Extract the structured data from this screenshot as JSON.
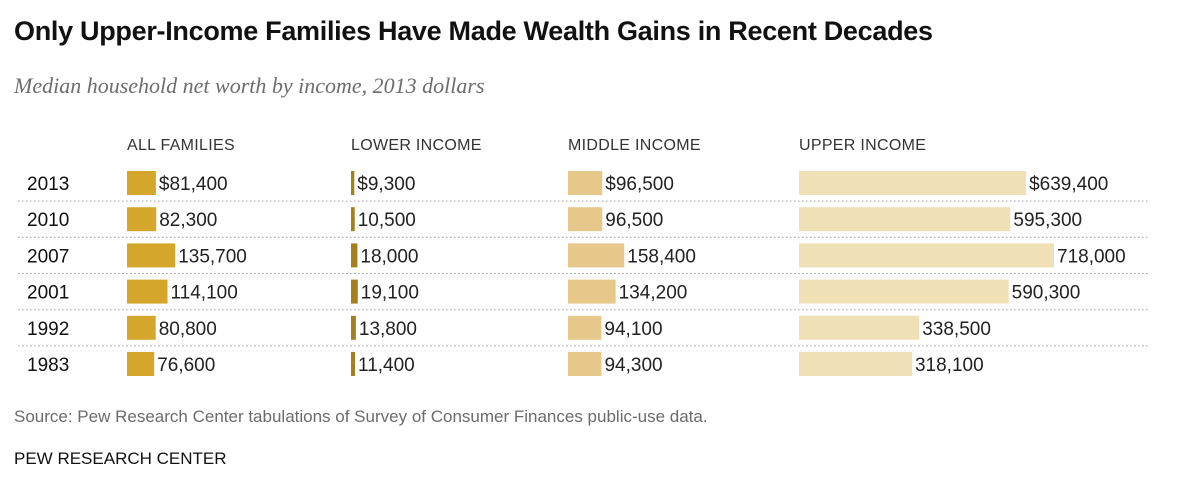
{
  "title": "Only Upper-Income Families Have Made Wealth Gains in Recent Decades",
  "subtitle": "Median household net worth by income, 2013 dollars",
  "source": "Source: Pew Research Center tabulations of Survey of Consumer Finances public-use data.",
  "credit": "PEW RESEARCH CENTER",
  "chart_data": {
    "type": "bar",
    "orientation": "horizontal",
    "categories": [
      "2013",
      "2010",
      "2007",
      "2001",
      "1992",
      "1983"
    ],
    "series": [
      {
        "name": "ALL FAMILIES",
        "color": "#d4a72c",
        "values": [
          81400,
          82300,
          135700,
          114100,
          80800,
          76600
        ],
        "labels": [
          "$81,400",
          "82,300",
          "135,700",
          "114,100",
          "80,800",
          "76,600"
        ]
      },
      {
        "name": "LOWER INCOME",
        "color": "#a47f1c",
        "values": [
          9300,
          10500,
          18000,
          19100,
          13800,
          11400
        ],
        "labels": [
          "$9,300",
          "10,500",
          "18,000",
          "19,100",
          "13,800",
          "11,400"
        ]
      },
      {
        "name": "MIDDLE INCOME",
        "color": "#e6c98a",
        "values": [
          96500,
          96500,
          158400,
          134200,
          94100,
          94300
        ],
        "labels": [
          "$96,500",
          "96,500",
          "158,400",
          "134,200",
          "94,100",
          "94,300"
        ]
      },
      {
        "name": "UPPER INCOME",
        "color": "#efe0b6",
        "values": [
          639400,
          595300,
          718000,
          590300,
          338500,
          318100
        ],
        "labels": [
          "$639,400",
          "595,300",
          "718,000",
          "590,300",
          "338,500",
          "318,100"
        ]
      }
    ],
    "grid": false,
    "legend": "none"
  }
}
